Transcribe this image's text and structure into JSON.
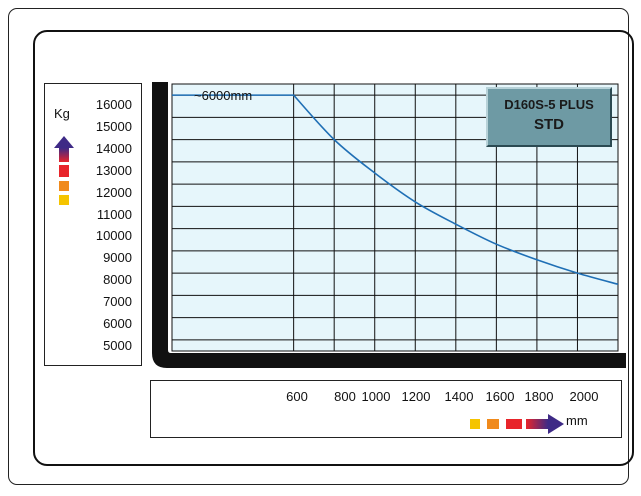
{
  "model": {
    "name": "D160S-5 PLUS",
    "variant": "STD"
  },
  "annotation": "~6000mm",
  "units": {
    "y": "Kg",
    "x": "mm"
  },
  "colors": {
    "grid_fill": "#e6f6fb",
    "curve": "#1f6fb5",
    "arrow_gradient": [
      "#f5c400",
      "#e8242a",
      "#3e2a86"
    ],
    "model_box": "#6e9aa4"
  },
  "chart_data": {
    "type": "line",
    "title": "D160S-5 PLUS STD",
    "xlabel": "mm",
    "ylabel": "Kg",
    "x_ticks": [
      600,
      800,
      1000,
      1200,
      1400,
      1600,
      1800,
      2000
    ],
    "x_tick_labels": [
      "600",
      "800",
      "1000",
      "1200",
      "1400",
      "1600",
      "1800",
      "2000"
    ],
    "y_ticks": [
      5000,
      6000,
      7000,
      8000,
      9000,
      10000,
      11000,
      12000,
      13000,
      14000,
      15000,
      16000
    ],
    "y_tick_labels": [
      "5000",
      "6000",
      "7000",
      "8000",
      "9000",
      "10000",
      "11000",
      "12000",
      "13000",
      "14000",
      "15000",
      "16000"
    ],
    "xlim": [
      0,
      2200
    ],
    "ylim": [
      4500,
      16500
    ],
    "grid": true,
    "series": [
      {
        "x": [
          0,
          600,
          800,
          1000,
          1200,
          1400,
          1600,
          1800,
          2000,
          2200
        ],
        "y": [
          16000,
          16000,
          14000,
          12500,
          11200,
          10200,
          9300,
          8600,
          8000,
          7500
        ]
      }
    ]
  }
}
